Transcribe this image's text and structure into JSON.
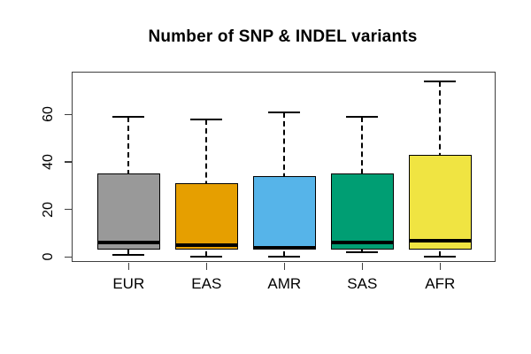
{
  "chart_data": {
    "type": "boxplot",
    "title": "Number of SNP & INDEL variants",
    "xlabel": "",
    "ylabel": "",
    "categories": [
      "EUR",
      "EAS",
      "AMR",
      "SAS",
      "AFR"
    ],
    "series": [
      {
        "name": "EUR",
        "color": "#999999",
        "whisker_low": 1,
        "q1": 3,
        "median": 6,
        "q3": 35,
        "whisker_high": 59
      },
      {
        "name": "EAS",
        "color": "#E69F00",
        "whisker_low": 0,
        "q1": 3,
        "median": 5,
        "q3": 31,
        "whisker_high": 58
      },
      {
        "name": "AMR",
        "color": "#56B4E9",
        "whisker_low": 0,
        "q1": 3,
        "median": 4,
        "q3": 34,
        "whisker_high": 61
      },
      {
        "name": "SAS",
        "color": "#009E73",
        "whisker_low": 2,
        "q1": 3,
        "median": 6,
        "q3": 35,
        "whisker_high": 59
      },
      {
        "name": "AFR",
        "color": "#F0E442",
        "whisker_low": 0,
        "q1": 3,
        "median": 7,
        "q3": 43,
        "whisker_high": 74
      }
    ],
    "y_ticks": [
      0,
      20,
      40,
      60
    ],
    "ylim": [
      -2,
      78
    ],
    "grid": false,
    "legend": "none",
    "axis_color": "#000000",
    "median_color": "#000000",
    "box_border_color": "#000000"
  }
}
